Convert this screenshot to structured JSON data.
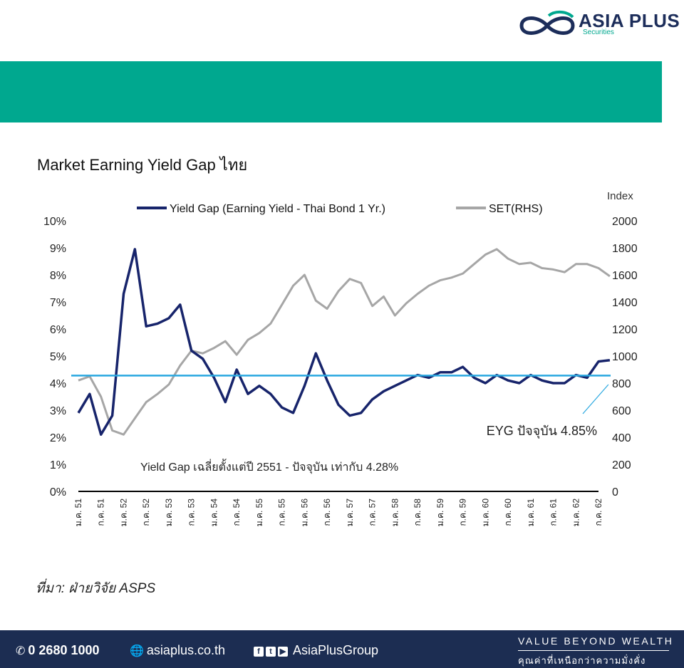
{
  "brand": {
    "name": "ASIA PLUS",
    "sub": "Securities"
  },
  "colors": {
    "teal": "#00a88f",
    "navy": "#1c2d52",
    "yield_gap_line": "#17246b",
    "set_line": "#a6a6a6",
    "average_line": "#29a8e0"
  },
  "chart_title": "Market Earning Yield Gap ไทย",
  "source": "ที่มา: ฝ่ายวิจัย ASPS",
  "chart_data": {
    "type": "line",
    "right_axis_title": "Index",
    "legend": [
      "Yield Gap (Earning Yield - Thai Bond 1 Yr.)",
      "SET(RHS)"
    ],
    "legend_position": "top",
    "y_left": {
      "min": 0,
      "max": 10,
      "ticks": [
        "0%",
        "1%",
        "2%",
        "3%",
        "4%",
        "5%",
        "6%",
        "7%",
        "8%",
        "9%",
        "10%"
      ]
    },
    "y_right": {
      "min": 0,
      "max": 2000,
      "ticks": [
        "0",
        "200",
        "400",
        "600",
        "800",
        "1000",
        "1200",
        "1400",
        "1600",
        "1800",
        "2000"
      ]
    },
    "x_ticks": [
      "ม.ค. 51",
      "ก.ค. 51",
      "ม.ค. 52",
      "ก.ค. 52",
      "ม.ค. 53",
      "ก.ค. 53",
      "ม.ค. 54",
      "ก.ค. 54",
      "ม.ค. 55",
      "ก.ค. 55",
      "ม.ค. 56",
      "ก.ค. 56",
      "ม.ค. 57",
      "ก.ค. 57",
      "ม.ค. 58",
      "ก.ค. 58",
      "ม.ค. 59",
      "ก.ค. 59",
      "ม.ค. 60",
      "ก.ค. 60",
      "ม.ค. 61",
      "ก.ค. 61",
      "ม.ค. 62",
      "ก.ค. 62"
    ],
    "grid": false,
    "average_value": 4.28,
    "annotations": {
      "current": "EYG ปัจจุบัน 4.85%",
      "average": "Yield Gap เฉลี่ยตั้งแต่ปี 2551 - ปัจจุบัน เท่ากับ 4.28%"
    },
    "series": [
      {
        "name": "Yield Gap (Earning Yield - Thai Bond 1 Yr.)",
        "axis": "left",
        "unit": "%",
        "x": [
          0,
          0.5,
          1,
          1.5,
          2,
          2.5,
          3,
          3.5,
          4,
          4.5,
          5,
          5.5,
          6,
          6.5,
          7,
          7.5,
          8,
          8.5,
          9,
          9.5,
          10,
          10.5,
          11,
          11.5,
          12,
          12.5,
          13,
          13.5,
          14,
          14.5,
          15,
          15.5,
          16,
          16.5,
          17,
          17.5,
          18,
          18.5,
          19,
          19.5,
          20,
          20.5,
          21,
          21.5,
          22,
          22.5,
          23,
          23.5
        ],
        "values": [
          2.9,
          3.6,
          2.1,
          2.8,
          7.3,
          8.95,
          6.1,
          6.2,
          6.4,
          6.9,
          5.2,
          4.9,
          4.2,
          3.3,
          4.5,
          3.6,
          3.9,
          3.6,
          3.1,
          2.9,
          3.9,
          5.1,
          4.1,
          3.2,
          2.8,
          2.9,
          3.4,
          3.7,
          3.9,
          4.1,
          4.3,
          4.2,
          4.4,
          4.4,
          4.6,
          4.2,
          4.0,
          4.3,
          4.1,
          4.0,
          4.3,
          4.1,
          4.0,
          4.0,
          4.3,
          4.2,
          4.8,
          4.85
        ]
      },
      {
        "name": "SET(RHS)",
        "axis": "right",
        "unit": "Index",
        "x": [
          0,
          0.5,
          1,
          1.5,
          2,
          2.5,
          3,
          3.5,
          4,
          4.5,
          5,
          5.5,
          6,
          6.5,
          7,
          7.5,
          8,
          8.5,
          9,
          9.5,
          10,
          10.5,
          11,
          11.5,
          12,
          12.5,
          13,
          13.5,
          14,
          14.5,
          15,
          15.5,
          16,
          16.5,
          17,
          17.5,
          18,
          18.5,
          19,
          19.5,
          20,
          20.5,
          21,
          21.5,
          22,
          22.5,
          23,
          23.5
        ],
        "values": [
          820,
          850,
          700,
          450,
          420,
          540,
          660,
          720,
          790,
          930,
          1040,
          1020,
          1060,
          1110,
          1010,
          1120,
          1170,
          1240,
          1380,
          1520,
          1600,
          1410,
          1350,
          1480,
          1570,
          1540,
          1370,
          1440,
          1300,
          1390,
          1460,
          1520,
          1560,
          1580,
          1610,
          1680,
          1750,
          1790,
          1720,
          1680,
          1690,
          1650,
          1640,
          1620,
          1680,
          1680,
          1650,
          1590
        ]
      }
    ]
  },
  "footer": {
    "phone": "0 2680 1000",
    "website": "asiaplus.co.th",
    "social": "AsiaPlusGroup",
    "tagline": "VALUE BEYOND WEALTH",
    "tagline_th": "คุณค่าที่เหนือกว่าความมั่งคั่ง"
  }
}
